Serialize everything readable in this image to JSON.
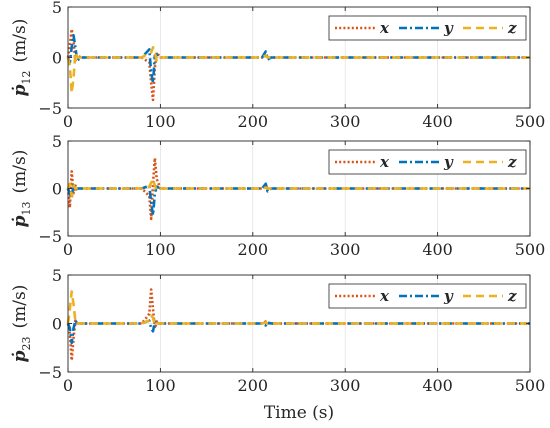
{
  "chart_data": [
    {
      "type": "line",
      "ylabel": "ṗ12 (m/s)",
      "ylabel_base": "ṗ",
      "ylabel_sub": "12",
      "ylabel_unit": "(m/s)",
      "xlim": [
        0,
        500
      ],
      "ylim": [
        -5,
        5
      ],
      "xticks": [
        0,
        100,
        200,
        300,
        400,
        500
      ],
      "yticks": [
        -5,
        0,
        5
      ],
      "grid": true,
      "legend": "top-right",
      "series": [
        {
          "name": "x",
          "color": "#D95319",
          "dash": "dotted",
          "x": [
            0,
            2,
            4,
            6,
            8,
            10,
            14,
            20,
            30,
            80,
            88,
            90,
            92,
            94,
            96,
            100,
            110,
            210,
            214,
            216,
            220,
            300,
            500
          ],
          "y": [
            0,
            1.2,
            2.8,
            1.5,
            -0.3,
            0.2,
            0,
            0,
            0,
            0,
            -0.5,
            -2.5,
            -4.2,
            -1.0,
            0.5,
            0,
            0,
            0,
            0.4,
            0,
            0,
            0,
            0
          ]
        },
        {
          "name": "y",
          "color": "#0072BD",
          "dash": "dashdot",
          "x": [
            0,
            2,
            4,
            6,
            8,
            10,
            14,
            20,
            30,
            80,
            88,
            90,
            92,
            94,
            96,
            100,
            110,
            210,
            214,
            216,
            220,
            300,
            500
          ],
          "y": [
            0,
            -0.5,
            1.0,
            2.2,
            1.0,
            -0.3,
            0,
            0,
            0,
            0,
            0.8,
            -1.5,
            -2.5,
            0.2,
            0.3,
            0,
            0,
            0,
            0.6,
            -0.2,
            0,
            0,
            0
          ]
        },
        {
          "name": "z",
          "color": "#EDB120",
          "dash": "dashed",
          "x": [
            0,
            2,
            4,
            6,
            8,
            10,
            14,
            20,
            30,
            80,
            88,
            90,
            92,
            94,
            96,
            100,
            110,
            210,
            214,
            216,
            220,
            300,
            500
          ],
          "y": [
            0,
            -0.8,
            -3.5,
            -2.0,
            0.5,
            0,
            0,
            0,
            0,
            0,
            0.5,
            0.5,
            1.0,
            0.5,
            -0.4,
            0,
            0,
            0,
            0.2,
            0,
            0,
            0,
            0
          ]
        }
      ]
    },
    {
      "type": "line",
      "ylabel": "ṗ13 (m/s)",
      "ylabel_base": "ṗ",
      "ylabel_sub": "13",
      "ylabel_unit": "(m/s)",
      "xlim": [
        0,
        500
      ],
      "ylim": [
        -5,
        5
      ],
      "xticks": [
        0,
        100,
        200,
        300,
        400,
        500
      ],
      "yticks": [
        -5,
        0,
        5
      ],
      "grid": true,
      "legend": "top-right",
      "series": [
        {
          "name": "x",
          "color": "#D95319",
          "dash": "dotted",
          "x": [
            0,
            2,
            4,
            6,
            8,
            10,
            14,
            20,
            30,
            80,
            88,
            90,
            92,
            94,
            96,
            100,
            110,
            210,
            214,
            216,
            220,
            300,
            500
          ],
          "y": [
            0,
            -2.0,
            1.8,
            -0.5,
            0.3,
            0,
            0,
            0,
            0,
            0,
            -0.8,
            -3.2,
            0.5,
            3.2,
            1.0,
            0,
            0,
            0,
            0.3,
            0,
            0,
            0,
            0
          ]
        },
        {
          "name": "y",
          "color": "#0072BD",
          "dash": "dashdot",
          "x": [
            0,
            2,
            4,
            6,
            8,
            10,
            14,
            20,
            30,
            80,
            88,
            90,
            92,
            94,
            96,
            100,
            110,
            210,
            214,
            216,
            220,
            300,
            500
          ],
          "y": [
            0,
            -0.5,
            -1.0,
            0.5,
            -0.2,
            0,
            0,
            0,
            0,
            0,
            0.3,
            -1.5,
            -2.8,
            -0.5,
            0.2,
            0,
            0,
            0,
            0.5,
            -0.3,
            0,
            0,
            0
          ]
        },
        {
          "name": "z",
          "color": "#EDB120",
          "dash": "dashed",
          "x": [
            0,
            2,
            4,
            6,
            8,
            10,
            14,
            20,
            30,
            80,
            88,
            90,
            92,
            94,
            96,
            100,
            110,
            210,
            214,
            216,
            220,
            300,
            500
          ],
          "y": [
            0,
            0.5,
            -0.8,
            0.3,
            0,
            0,
            0,
            0,
            0,
            0,
            0.2,
            0.6,
            1.0,
            0.3,
            -0.2,
            0,
            0,
            0,
            0.1,
            0,
            0,
            0,
            0
          ]
        }
      ]
    },
    {
      "type": "line",
      "ylabel": "ṗ23 (m/s)",
      "ylabel_base": "ṗ",
      "ylabel_sub": "23",
      "ylabel_unit": "(m/s)",
      "xlabel": "Time (s)",
      "xlim": [
        0,
        500
      ],
      "ylim": [
        -5,
        5
      ],
      "xticks": [
        0,
        100,
        200,
        300,
        400,
        500
      ],
      "yticks": [
        -5,
        0,
        5
      ],
      "grid": true,
      "legend": "top-right",
      "series": [
        {
          "name": "x",
          "color": "#D95319",
          "dash": "dotted",
          "x": [
            0,
            2,
            4,
            6,
            8,
            10,
            14,
            20,
            30,
            80,
            88,
            90,
            92,
            94,
            96,
            100,
            110,
            210,
            214,
            216,
            220,
            300,
            500
          ],
          "y": [
            0,
            -1.0,
            -3.8,
            -1.5,
            0.3,
            0,
            0,
            0,
            0,
            0,
            1.0,
            3.5,
            1.5,
            -0.5,
            0.2,
            0,
            0,
            0,
            0.2,
            0,
            0,
            0,
            0
          ]
        },
        {
          "name": "y",
          "color": "#0072BD",
          "dash": "dashdot",
          "x": [
            0,
            2,
            4,
            6,
            8,
            10,
            14,
            20,
            30,
            80,
            88,
            90,
            92,
            94,
            96,
            100,
            110,
            210,
            214,
            216,
            220,
            300,
            500
          ],
          "y": [
            0,
            -0.5,
            -2.0,
            -0.5,
            0.3,
            0,
            0,
            0,
            0,
            0,
            0.3,
            -0.5,
            -0.8,
            0.2,
            0,
            0,
            0,
            0,
            -0.2,
            0.1,
            0,
            0,
            0
          ]
        },
        {
          "name": "z",
          "color": "#EDB120",
          "dash": "dashed",
          "x": [
            0,
            2,
            4,
            6,
            8,
            10,
            14,
            20,
            30,
            80,
            88,
            90,
            92,
            94,
            96,
            100,
            110,
            210,
            214,
            216,
            220,
            300,
            500
          ],
          "y": [
            0,
            1.5,
            3.3,
            2.0,
            0.2,
            0,
            0,
            0,
            0,
            0,
            0.3,
            0.8,
            0.6,
            -0.2,
            0,
            0,
            0,
            0,
            0.1,
            0,
            0,
            0,
            0
          ]
        }
      ]
    }
  ]
}
